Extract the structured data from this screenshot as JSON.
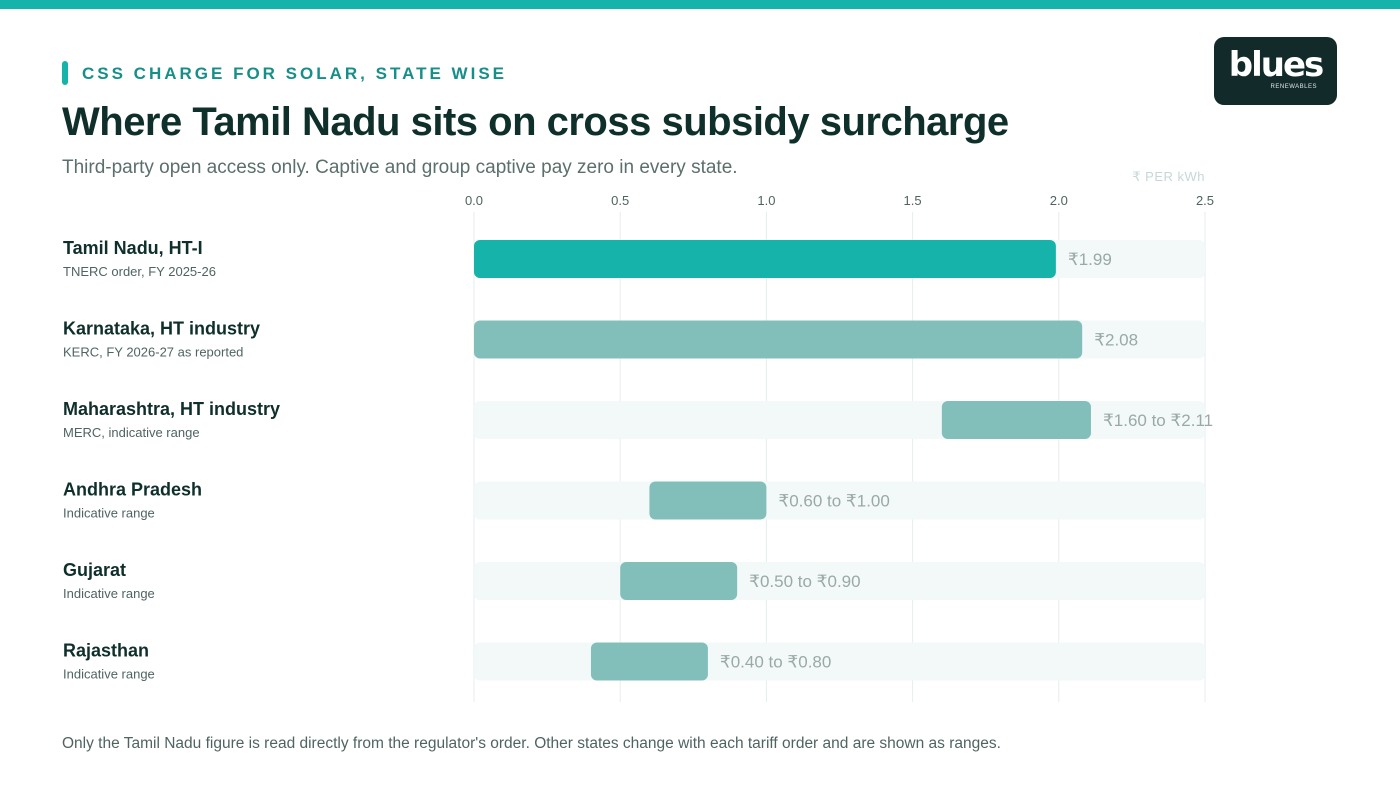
{
  "header": {
    "eyebrow": "CSS CHARGE FOR SOLAR, STATE WISE",
    "title": "Where Tamil Nadu sits on cross subsidy surcharge",
    "subtitle": "Third-party open access only. Captive and group captive pay zero in every state.",
    "unit_label": "₹ PER kWh"
  },
  "logo": {
    "word": "blues",
    "tagline": "RENEWABLES"
  },
  "footnote": "Only the Tamil Nadu figure is read directly from the regulator's order. Other states change with each tariff order and are shown as ranges.",
  "colors": {
    "accent": "#16b3ab",
    "highlight_bar": "#16b3ab",
    "range_bar": "#83bfba",
    "track": "#f3f9f8",
    "grid": "#e6eeed"
  },
  "chart_data": {
    "type": "bar",
    "orientation": "horizontal",
    "xlim": [
      0,
      2.5
    ],
    "ticks": [
      "0.0",
      "0.5",
      "1.0",
      "1.5",
      "2.0",
      "2.5"
    ],
    "tick_values": [
      0,
      0.5,
      1.0,
      1.5,
      2.0,
      2.5
    ],
    "grid": true,
    "rows": [
      {
        "name": "Tamil Nadu, HT-I",
        "note": "TNERC order, FY 2025-26",
        "start": 0,
        "end": 1.99,
        "label": "₹1.99",
        "highlight": true
      },
      {
        "name": "Karnataka, HT industry",
        "note": "KERC, FY 2026-27 as reported",
        "start": 0,
        "end": 2.08,
        "label": "₹2.08",
        "highlight": false
      },
      {
        "name": "Maharashtra, HT industry",
        "note": "MERC, indicative range",
        "start": 1.6,
        "end": 2.11,
        "label": "₹1.60 to ₹2.11",
        "highlight": false
      },
      {
        "name": "Andhra Pradesh",
        "note": "Indicative range",
        "start": 0.6,
        "end": 1.0,
        "label": "₹0.60 to ₹1.00",
        "highlight": false
      },
      {
        "name": "Gujarat",
        "note": "Indicative range",
        "start": 0.5,
        "end": 0.9,
        "label": "₹0.50 to ₹0.90",
        "highlight": false
      },
      {
        "name": "Rajasthan",
        "note": "Indicative range",
        "start": 0.4,
        "end": 0.8,
        "label": "₹0.40 to ₹0.80",
        "highlight": false
      }
    ]
  }
}
